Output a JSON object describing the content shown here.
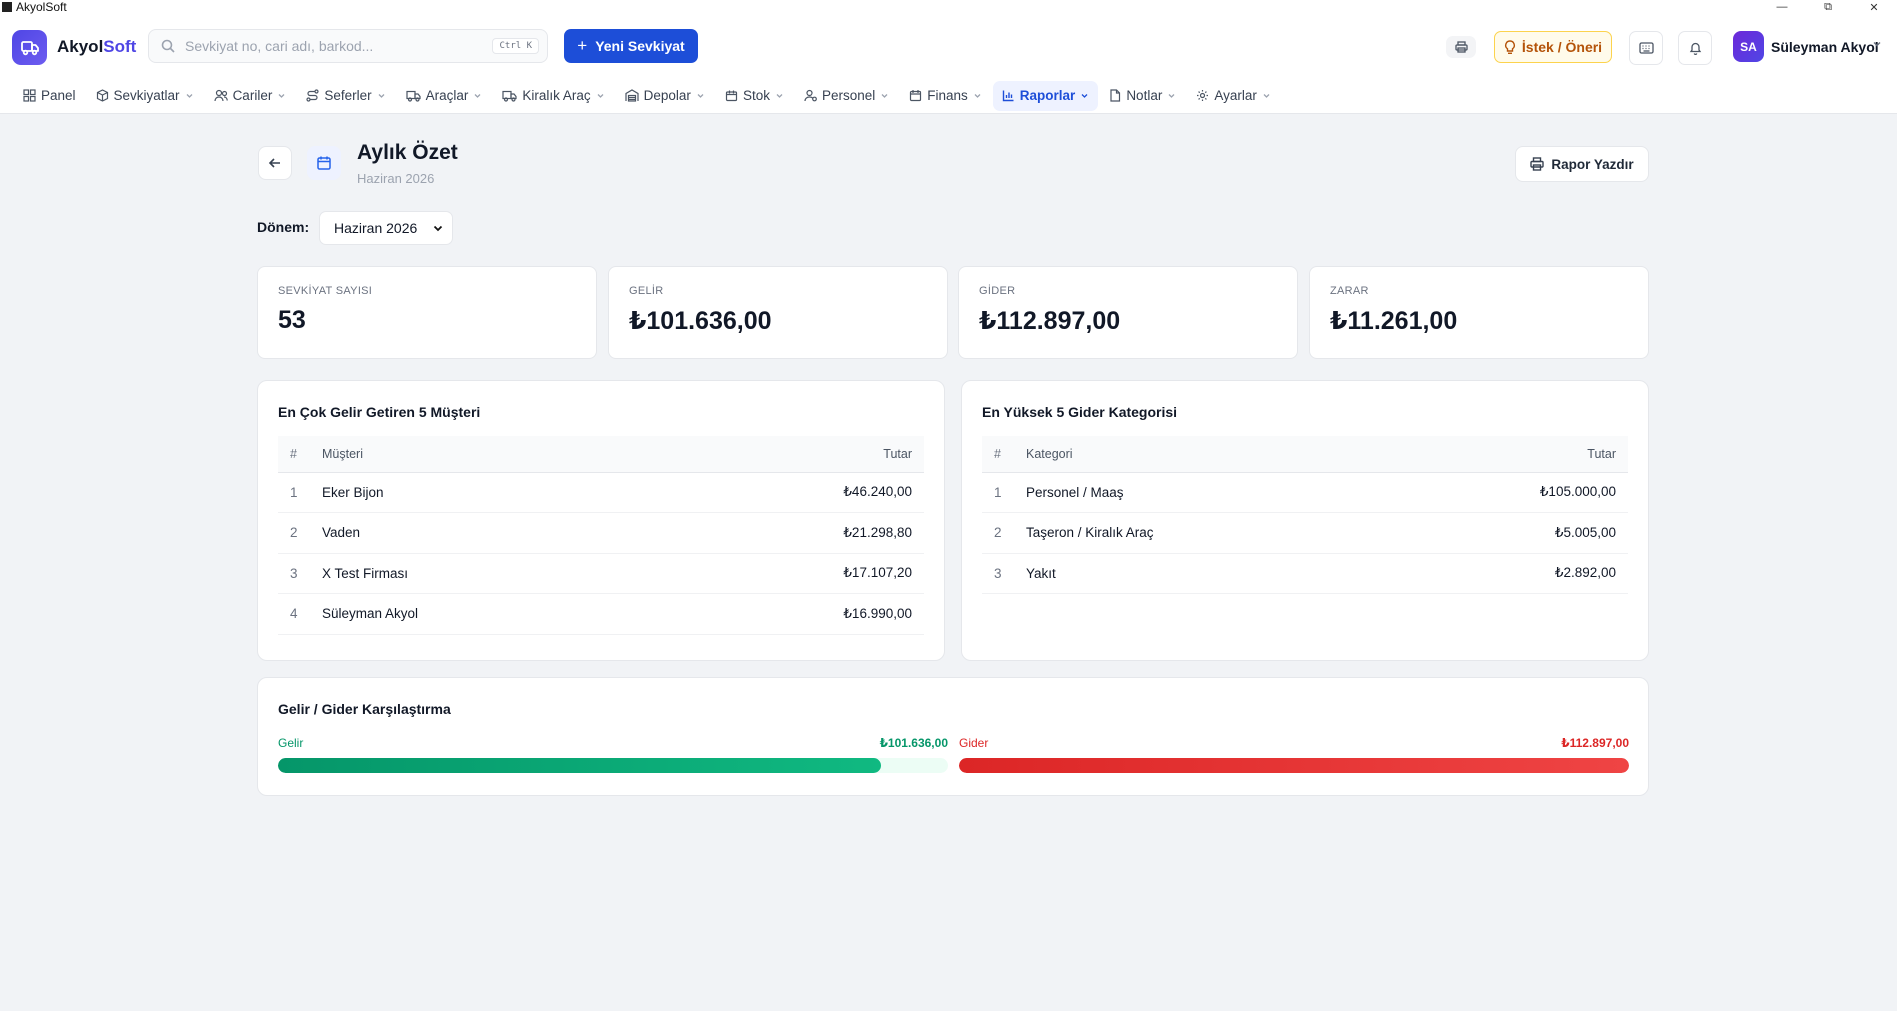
{
  "window": {
    "title": "AkyolSoft"
  },
  "header": {
    "logo_part1": "Akyol",
    "logo_part2": "Soft",
    "search_placeholder": "Sevkiyat no, cari adı, barkod...",
    "search_shortcut": "Ctrl K",
    "new_shipment_label": "Yeni Sevkiyat",
    "suggestion_label": "İstek / Öneri",
    "user_initials": "SA",
    "user_name": "Süleyman Akyol"
  },
  "nav": {
    "items": [
      {
        "label": "Panel",
        "icon": "grid-icon",
        "has_dropdown": false
      },
      {
        "label": "Sevkiyatlar",
        "icon": "box-icon",
        "has_dropdown": true
      },
      {
        "label": "Cariler",
        "icon": "users-icon",
        "has_dropdown": true
      },
      {
        "label": "Seferler",
        "icon": "route-icon",
        "has_dropdown": true
      },
      {
        "label": "Araçlar",
        "icon": "truck-icon",
        "has_dropdown": true
      },
      {
        "label": "Kiralık Araç",
        "icon": "truck-icon",
        "has_dropdown": true
      },
      {
        "label": "Depolar",
        "icon": "warehouse-icon",
        "has_dropdown": true
      },
      {
        "label": "Stok",
        "icon": "package-icon",
        "has_dropdown": true
      },
      {
        "label": "Personel",
        "icon": "person-icon",
        "has_dropdown": true
      },
      {
        "label": "Finans",
        "icon": "wallet-icon",
        "has_dropdown": true
      },
      {
        "label": "Raporlar",
        "icon": "bar-chart-icon",
        "has_dropdown": true,
        "active": true
      },
      {
        "label": "Notlar",
        "icon": "note-icon",
        "has_dropdown": true
      },
      {
        "label": "Ayarlar",
        "icon": "gear-icon",
        "has_dropdown": true
      }
    ]
  },
  "page": {
    "title": "Aylık Özet",
    "subtitle": "Haziran 2026",
    "print_label": "Rapor Yazdır",
    "period_label": "Dönem:",
    "period_value": "Haziran 2026"
  },
  "stats": [
    {
      "label": "SEVKİYAT SAYISI",
      "value": "53"
    },
    {
      "label": "GELİR",
      "value": "₺101.636,00"
    },
    {
      "label": "GİDER",
      "value": "₺112.897,00"
    },
    {
      "label": "ZARAR",
      "value": "₺11.261,00"
    }
  ],
  "top_customers": {
    "title": "En Çok Gelir Getiren 5 Müşteri",
    "columns": [
      "#",
      "Müşteri",
      "Tutar"
    ],
    "rows": [
      {
        "idx": "1",
        "name": "Eker Bijon",
        "amount": "₺46.240,00"
      },
      {
        "idx": "2",
        "name": "Vaden",
        "amount": "₺21.298,80"
      },
      {
        "idx": "3",
        "name": "X Test Firması",
        "amount": "₺17.107,20"
      },
      {
        "idx": "4",
        "name": "Süleyman Akyol",
        "amount": "₺16.990,00"
      }
    ]
  },
  "top_expenses": {
    "title": "En Yüksek 5 Gider Kategorisi",
    "columns": [
      "#",
      "Kategori",
      "Tutar"
    ],
    "rows": [
      {
        "idx": "1",
        "name": "Personel / Maaş",
        "amount": "₺105.000,00"
      },
      {
        "idx": "2",
        "name": "Taşeron / Kiralık Araç",
        "amount": "₺5.005,00"
      },
      {
        "idx": "3",
        "name": "Yakıt",
        "amount": "₺2.892,00"
      }
    ]
  },
  "comparison": {
    "title": "Gelir / Gider Karşılaştırma",
    "income": {
      "label": "Gelir",
      "value": "₺101.636,00",
      "fill_percent": 90.0,
      "color": "#059669",
      "track": "#ecfdf5"
    },
    "expense": {
      "label": "Gider",
      "value": "₺112.897,00",
      "fill_percent": 100,
      "color": "#dc2626",
      "track": "#fef2f2"
    }
  },
  "colors": {
    "primary": "#1d4ed8",
    "brand": "#4f46e5",
    "income": "#059669",
    "expense": "#dc2626"
  }
}
